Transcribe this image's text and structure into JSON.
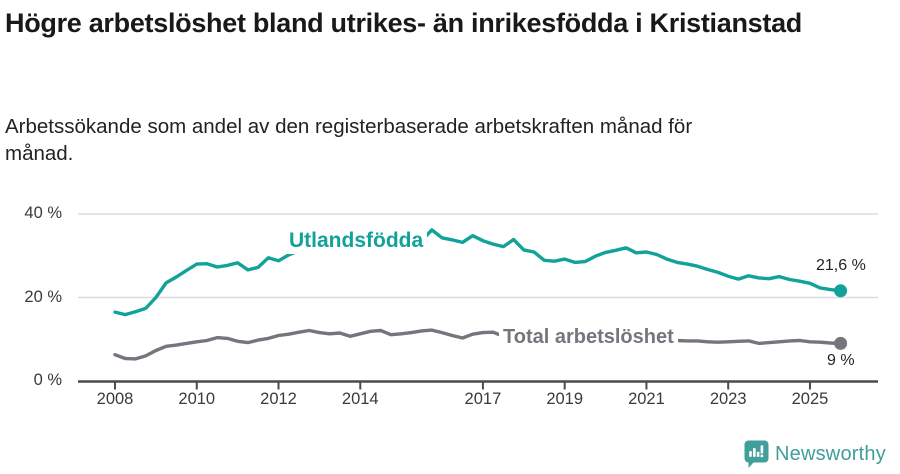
{
  "header": {
    "title": "Högre arbetslöshet bland utrikes- än inrikesfödda i Kristianstad",
    "subtitle": "Arbetssökande som andel av den registerbaserade arbetskraften månad för månad."
  },
  "colors": {
    "teal": "#11a29a",
    "gray": "#75757e",
    "grid": "#dcdcdc",
    "axis": "#4b4b4b",
    "tick_text": "#3a3a3a",
    "brand_teal": "#419e9a"
  },
  "chart_data": {
    "type": "line",
    "title": "Högre arbetslöshet bland utrikes- än inrikesfödda i Kristianstad",
    "subtitle": "Arbetssökande som andel av den registerbaserade arbetskraften månad för månad.",
    "grid": "horizontal",
    "legend_position": "inline-labels-on-lines",
    "x_axis": {
      "tick_years": [
        2008,
        2010,
        2012,
        2014,
        2017,
        2019,
        2021,
        2023,
        2025
      ],
      "tick_labels": [
        "2008",
        "2010",
        "2012",
        "2014",
        "2017",
        "2019",
        "2021",
        "2023",
        "2025"
      ]
    },
    "y_axis": {
      "tick_values": [
        0,
        20,
        40
      ],
      "tick_labels": [
        "0 %",
        "20 %",
        "40 %"
      ],
      "ylim": [
        0,
        41
      ]
    },
    "x": {
      "start": 2008,
      "step": 0.25,
      "count": 72,
      "last_x": 2025.75
    },
    "series": [
      {
        "name": "Utlandsfödda",
        "color": "#11a29a",
        "end_label": "21,6 %",
        "end_value": 21.6,
        "values": [
          16.5,
          15.9,
          16.6,
          17.4,
          20.0,
          23.5,
          24.9,
          26.5,
          28.0,
          28.1,
          27.3,
          27.7,
          28.3,
          26.6,
          27.2,
          29.5,
          28.8,
          30.2,
          31.2,
          30.8,
          31.2,
          31.0,
          31.4,
          31.2,
          31.5,
          31.3,
          31.8,
          32.0,
          32.3,
          32.8,
          33.6,
          36.2,
          34.3,
          33.8,
          33.2,
          34.8,
          33.6,
          32.8,
          32.2,
          33.9,
          31.4,
          30.9,
          28.9,
          28.7,
          29.2,
          28.4,
          28.6,
          29.9,
          30.8,
          31.3,
          31.9,
          30.7,
          30.9,
          30.3,
          29.2,
          28.4,
          28.0,
          27.5,
          26.7,
          26.0,
          25.1,
          24.4,
          25.2,
          24.7,
          24.5,
          25.0,
          24.3,
          23.9,
          23.4,
          22.3,
          21.9,
          21.6
        ]
      },
      {
        "name": "Total arbetslöshet",
        "color": "#75757e",
        "end_label": "9 %",
        "end_value": 9,
        "values": [
          6.3,
          5.4,
          5.3,
          6.0,
          7.3,
          8.3,
          8.6,
          9.0,
          9.4,
          9.7,
          10.4,
          10.2,
          9.5,
          9.2,
          9.8,
          10.2,
          10.9,
          11.2,
          11.7,
          12.1,
          11.6,
          11.3,
          11.5,
          10.7,
          11.3,
          11.9,
          12.1,
          11.1,
          11.3,
          11.6,
          12.0,
          12.2,
          11.6,
          10.9,
          10.3,
          11.2,
          11.6,
          11.7,
          10.7,
          10.4,
          10.2,
          9.9,
          9.7,
          9.6,
          9.7,
          9.5,
          9.6,
          9.8,
          10.0,
          11.0,
          11.3,
          10.9,
          10.6,
          10.2,
          9.9,
          9.7,
          9.6,
          9.6,
          9.4,
          9.3,
          9.4,
          9.5,
          9.6,
          9.0,
          9.2,
          9.4,
          9.6,
          9.7,
          9.4,
          9.3,
          9.1,
          9.0
        ]
      }
    ]
  },
  "footer": {
    "brand": "Newsworthy",
    "logo_icon": "bar-chart-speech-bubble-icon"
  }
}
